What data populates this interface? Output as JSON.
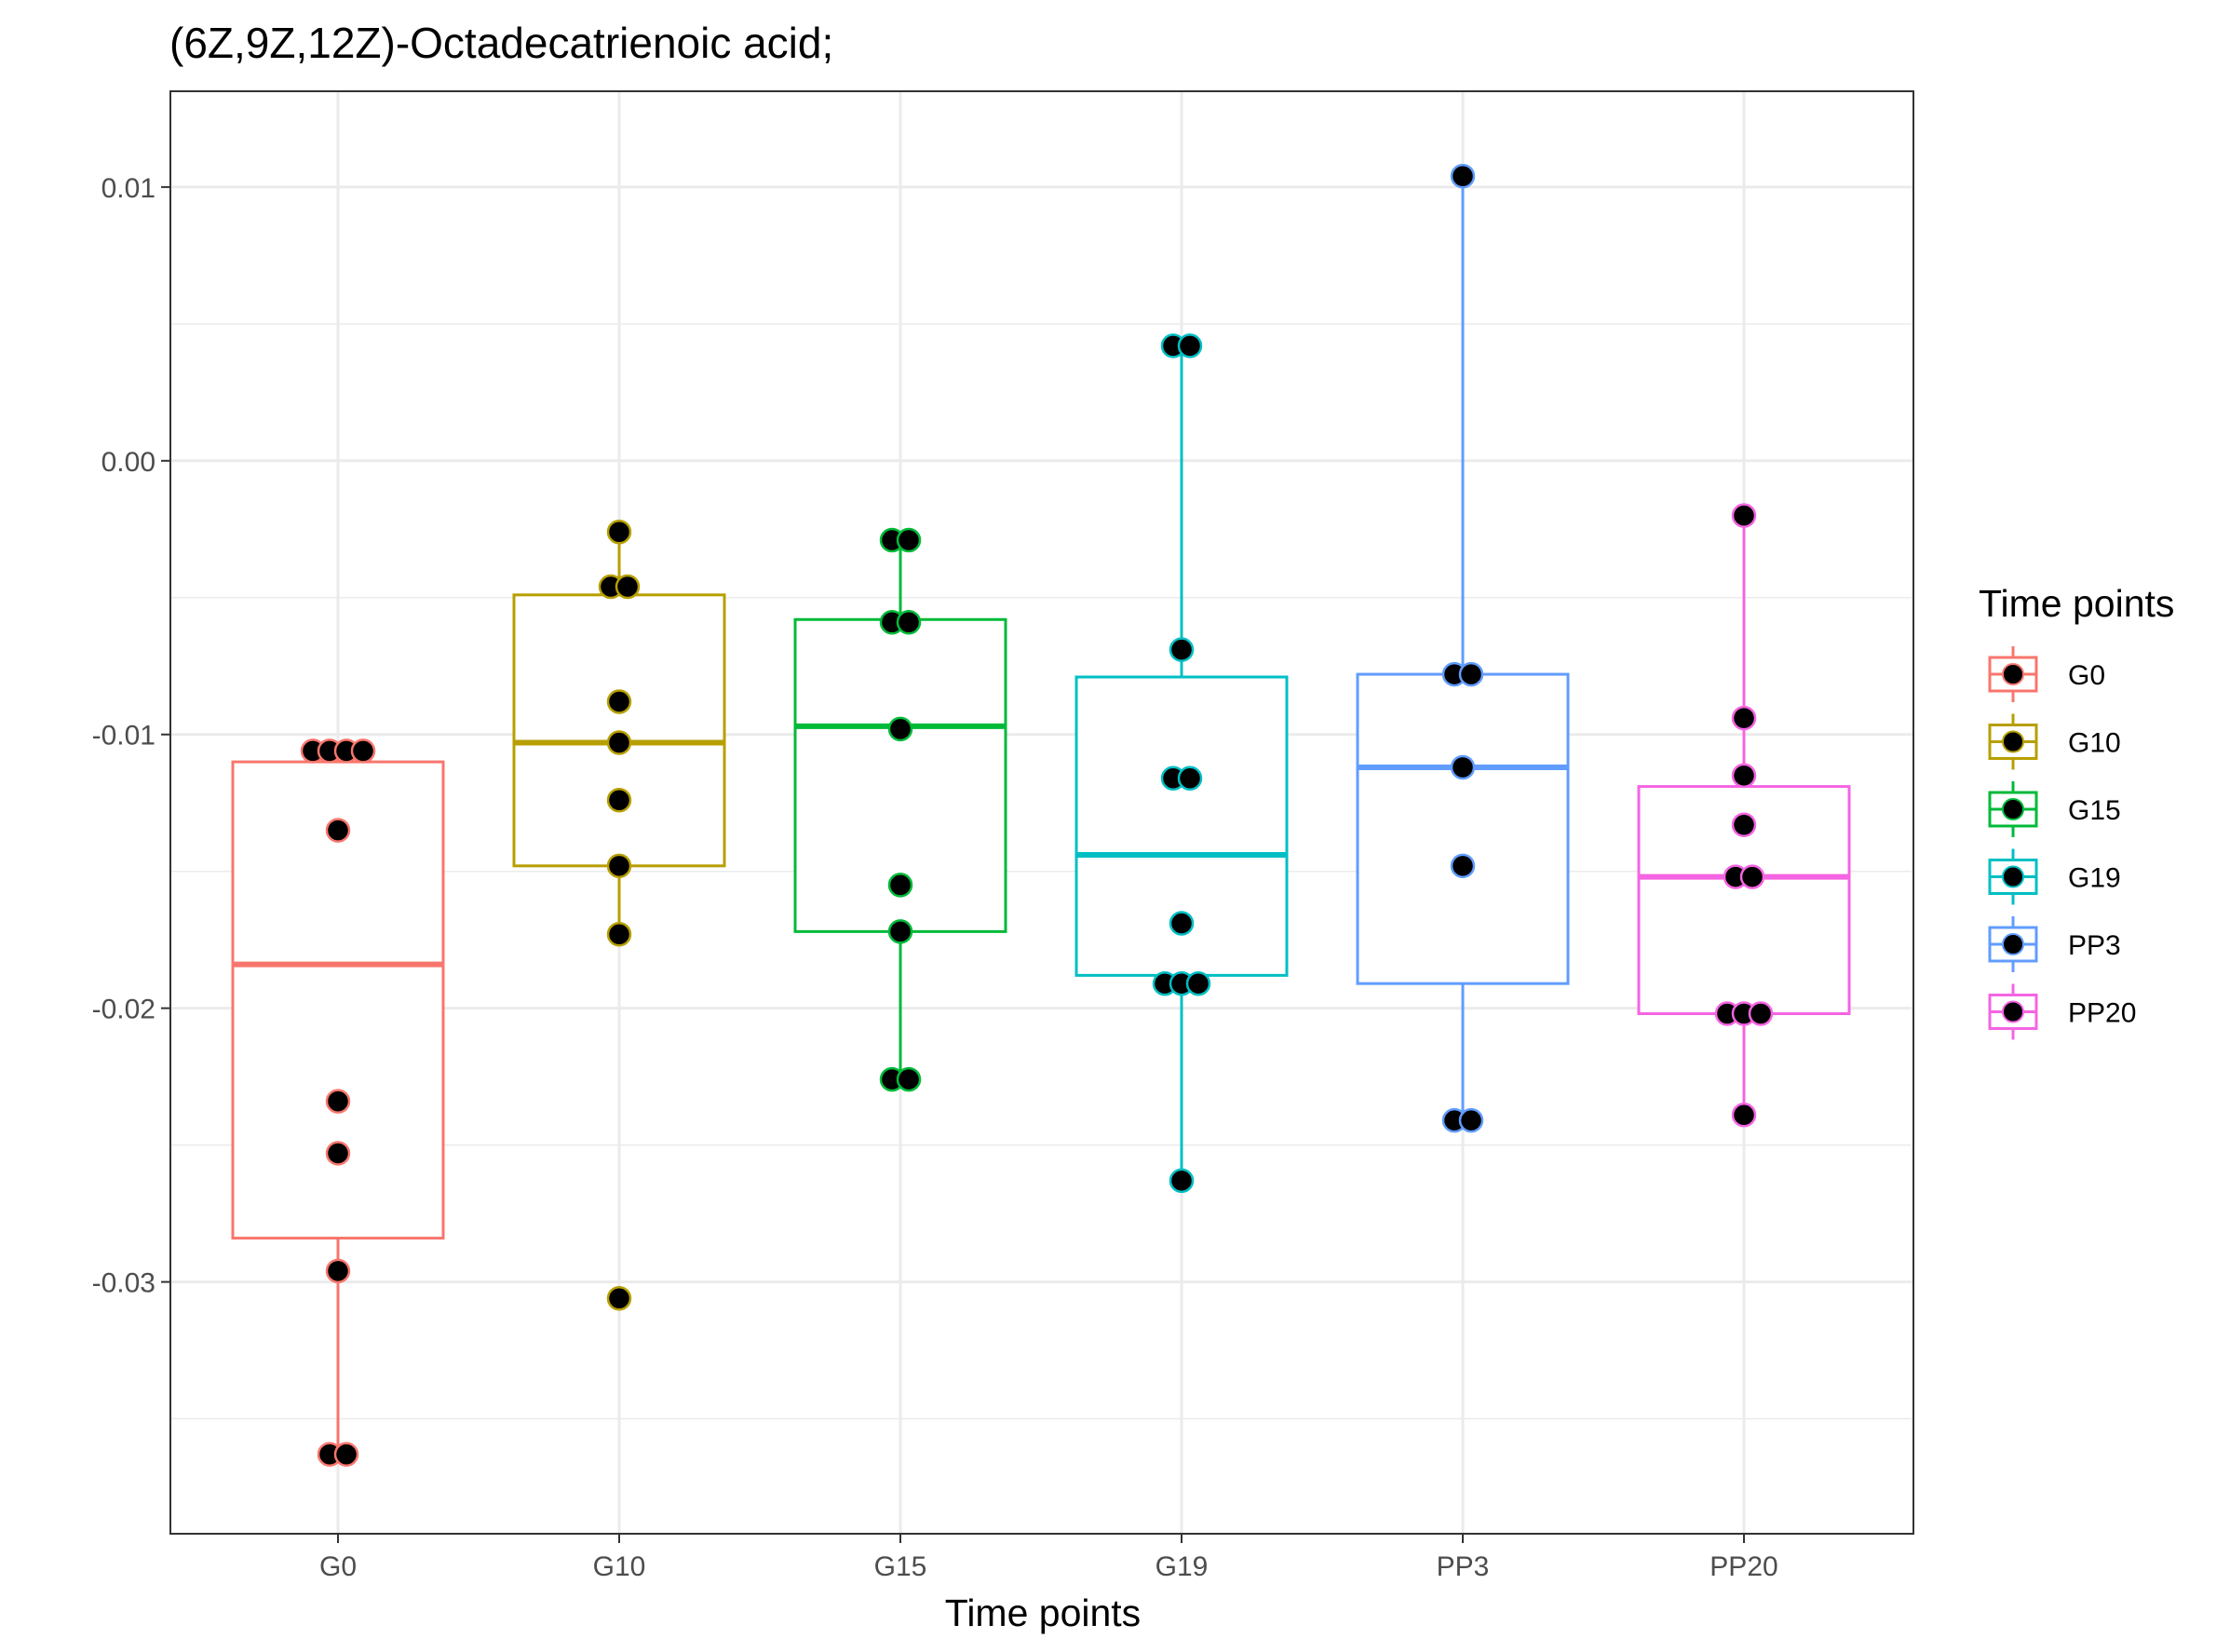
{
  "chart_data": {
    "type": "box",
    "title": "(6Z,9Z,12Z)-Octadecatrienoic acid;",
    "xlabel": "Time points",
    "ylabel": "",
    "ylim": [
      -0.0392,
      0.0135
    ],
    "y_ticks": [
      0.01,
      0.0,
      -0.01,
      -0.02,
      -0.03
    ],
    "y_tick_labels": [
      "0.01",
      "0.00",
      "-0.01",
      "-0.02",
      "-0.03"
    ],
    "grid": true,
    "legend": {
      "title": "Time points",
      "position": "right"
    },
    "categories": [
      "G0",
      "G10",
      "G15",
      "G19",
      "PP3",
      "PP20"
    ],
    "series": [
      {
        "name": "G0",
        "color": "#F8766D",
        "box": {
          "q1": -0.0284,
          "median": -0.0184,
          "q3": -0.011,
          "whisker_low": -0.0363,
          "whisker_high": -0.0106
        },
        "points": [
          {
            "y": -0.0106,
            "dx": -0.18
          },
          {
            "y": -0.0106,
            "dx": -0.06
          },
          {
            "y": -0.0106,
            "dx": 0.06
          },
          {
            "y": -0.0106,
            "dx": 0.18
          },
          {
            "y": -0.0135,
            "dx": 0
          },
          {
            "y": -0.0234,
            "dx": 0
          },
          {
            "y": -0.0253,
            "dx": 0
          },
          {
            "y": -0.0296,
            "dx": 0
          },
          {
            "y": -0.0363,
            "dx": -0.06
          },
          {
            "y": -0.0363,
            "dx": 0.06
          }
        ]
      },
      {
        "name": "G10",
        "color": "#B79F00",
        "box": {
          "q1": -0.0148,
          "median": -0.0103,
          "q3": -0.0049,
          "whisker_low": -0.0173,
          "whisker_high": -0.0026
        },
        "points": [
          {
            "y": -0.0026,
            "dx": 0
          },
          {
            "y": -0.0046,
            "dx": -0.06
          },
          {
            "y": -0.0046,
            "dx": 0.06
          },
          {
            "y": -0.0088,
            "dx": 0
          },
          {
            "y": -0.0103,
            "dx": 0
          },
          {
            "y": -0.0124,
            "dx": 0
          },
          {
            "y": -0.0148,
            "dx": 0
          },
          {
            "y": -0.0173,
            "dx": 0
          },
          {
            "y": -0.0306,
            "dx": 0
          }
        ]
      },
      {
        "name": "G15",
        "color": "#00BA38",
        "box": {
          "q1": -0.0172,
          "median": -0.0097,
          "q3": -0.0058,
          "whisker_low": -0.0226,
          "whisker_high": -0.0029
        },
        "points": [
          {
            "y": -0.0029,
            "dx": -0.06
          },
          {
            "y": -0.0029,
            "dx": 0.06
          },
          {
            "y": -0.0059,
            "dx": -0.06
          },
          {
            "y": -0.0059,
            "dx": 0.06
          },
          {
            "y": -0.0098,
            "dx": 0
          },
          {
            "y": -0.0155,
            "dx": 0
          },
          {
            "y": -0.0172,
            "dx": 0
          },
          {
            "y": -0.0226,
            "dx": -0.06
          },
          {
            "y": -0.0226,
            "dx": 0.06
          }
        ]
      },
      {
        "name": "G19",
        "color": "#00BFC4",
        "box": {
          "q1": -0.0188,
          "median": -0.0144,
          "q3": -0.0079,
          "whisker_low": -0.0263,
          "whisker_high": 0.0042
        },
        "points": [
          {
            "y": 0.0042,
            "dx": -0.06
          },
          {
            "y": 0.0042,
            "dx": 0.06
          },
          {
            "y": -0.0069,
            "dx": 0
          },
          {
            "y": -0.0116,
            "dx": -0.06
          },
          {
            "y": -0.0116,
            "dx": 0.06
          },
          {
            "y": -0.0169,
            "dx": 0
          },
          {
            "y": -0.0191,
            "dx": -0.12
          },
          {
            "y": -0.0191,
            "dx": 0
          },
          {
            "y": -0.0191,
            "dx": 0.12
          },
          {
            "y": -0.0263,
            "dx": 0
          }
        ]
      },
      {
        "name": "PP3",
        "color": "#619CFF",
        "box": {
          "q1": -0.0191,
          "median": -0.0112,
          "q3": -0.0078,
          "whisker_low": -0.0241,
          "whisker_high": 0.0104
        },
        "points": [
          {
            "y": 0.0104,
            "dx": 0
          },
          {
            "y": -0.0078,
            "dx": -0.06
          },
          {
            "y": -0.0078,
            "dx": 0.06
          },
          {
            "y": -0.0112,
            "dx": 0
          },
          {
            "y": -0.0148,
            "dx": 0
          },
          {
            "y": -0.0241,
            "dx": -0.06
          },
          {
            "y": -0.0241,
            "dx": 0.06
          }
        ]
      },
      {
        "name": "PP20",
        "color": "#F564E3",
        "box": {
          "q1": -0.0202,
          "median": -0.0152,
          "q3": -0.0119,
          "whisker_low": -0.0239,
          "whisker_high": -0.002
        },
        "points": [
          {
            "y": -0.002,
            "dx": 0
          },
          {
            "y": -0.0094,
            "dx": 0
          },
          {
            "y": -0.0115,
            "dx": 0
          },
          {
            "y": -0.0133,
            "dx": 0
          },
          {
            "y": -0.0152,
            "dx": -0.06
          },
          {
            "y": -0.0152,
            "dx": 0.06
          },
          {
            "y": -0.0202,
            "dx": -0.12
          },
          {
            "y": -0.0202,
            "dx": 0
          },
          {
            "y": -0.0202,
            "dx": 0.12
          },
          {
            "y": -0.0239,
            "dx": 0
          }
        ]
      }
    ]
  }
}
